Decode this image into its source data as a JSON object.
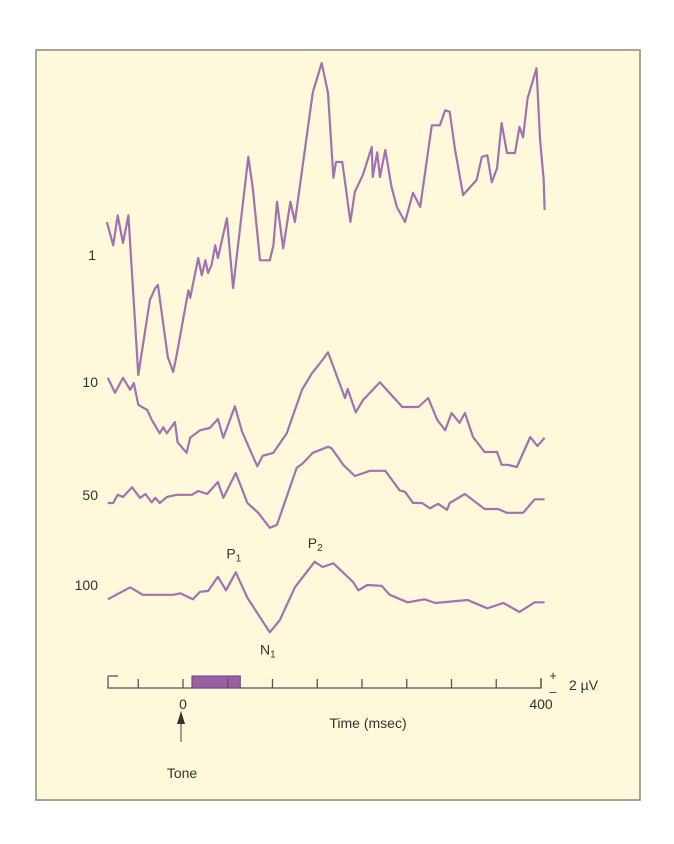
{
  "chart_data": {
    "type": "line",
    "title": "",
    "xlabel": "Time (msec)",
    "ylabel": "",
    "xlim": [
      -85,
      405
    ],
    "x_ticks": [
      -50,
      0,
      50,
      100,
      150,
      200,
      250,
      300,
      350,
      400
    ],
    "x_tick_labels": [
      {
        "t": 0,
        "label": "0"
      },
      {
        "t": 400,
        "label": "400"
      }
    ],
    "stimulus": {
      "label": "Tone",
      "onset_ms": 0,
      "bar_start_ms": 10,
      "bar_end_ms": 64,
      "color": "#9b5fa3"
    },
    "scale_bar": {
      "label": "2 µV",
      "plus": "+",
      "minus": "–",
      "value_uV": 2
    },
    "line_color": "#a272b0",
    "grid": false,
    "series": [
      {
        "name": "1",
        "t": [
          -85,
          -78,
          -73,
          -67,
          -61,
          -50,
          -37,
          -31,
          -28,
          -17,
          -11,
          -7,
          6,
          8,
          17,
          21,
          25,
          28,
          32,
          36,
          39,
          49,
          56,
          73,
          78,
          86,
          97,
          101,
          105,
          112,
          120,
          125,
          145,
          155,
          162,
          168,
          171,
          178,
          187,
          192,
          201,
          211,
          212,
          217,
          220,
          226,
          233,
          239,
          248,
          257,
          265,
          278,
          287,
          293,
          298,
          304,
          313,
          328,
          334,
          340,
          345,
          351,
          356,
          362,
          371,
          376,
          380,
          385,
          395,
          399,
          403,
          404
        ],
        "uV": [
          4.4,
          1.3,
          5.3,
          1.6,
          5.3,
          -16,
          -6,
          -4.4,
          -4,
          -13.6,
          -15.6,
          -13.3,
          -4.7,
          -5.7,
          -0.4,
          -2.7,
          -0.7,
          -2.4,
          -1.3,
          1.3,
          -0.4,
          4.9,
          -4.4,
          13.1,
          8.9,
          -0.7,
          -0.7,
          1.3,
          7.1,
          0.9,
          7.1,
          4.4,
          21.7,
          25.6,
          21.6,
          10.3,
          12.4,
          12.4,
          4.4,
          8.4,
          10.7,
          14.4,
          10.4,
          13.7,
          10.4,
          14,
          9.1,
          6.4,
          4.4,
          8.3,
          6.4,
          17.3,
          17.3,
          19.3,
          19.1,
          14,
          8,
          10,
          13.1,
          13.3,
          9.7,
          11.6,
          17.6,
          13.6,
          13.6,
          17.1,
          15.7,
          20.9,
          24.9,
          15.3,
          10,
          6
        ]
      },
      {
        "name": "10",
        "t": [
          -84,
          -76,
          -67,
          -59,
          -55,
          -50,
          -40,
          -35,
          -26,
          -22,
          -18,
          -9,
          -6,
          4,
          8,
          19,
          30,
          39,
          45,
          58,
          66,
          83,
          89,
          101,
          116,
          133,
          144,
          156,
          162,
          181,
          184,
          193,
          201,
          220,
          245,
          263,
          274,
          284,
          293,
          300,
          309,
          315,
          324,
          337,
          351,
          356,
          363,
          373,
          388,
          396,
          404
        ],
        "uV": [
          0.3,
          -1.7,
          0.3,
          -1.3,
          -0.4,
          -3.3,
          -4,
          -5.3,
          -7.1,
          -6.3,
          -7.1,
          -5.6,
          -8.3,
          -9.7,
          -7.7,
          -6.7,
          -6.4,
          -5.2,
          -7.7,
          -3.5,
          -6.9,
          -11.5,
          -10.1,
          -9.7,
          -7.1,
          -1.3,
          0.9,
          2.7,
          3.7,
          -2.4,
          -1.2,
          -4.3,
          -2.7,
          -0.3,
          -3.6,
          -3.6,
          -2.4,
          -5.3,
          -6.7,
          -4.4,
          -5.7,
          -4.4,
          -7.6,
          -9.6,
          -9.6,
          -11.3,
          -11.3,
          -11.6,
          -7.6,
          -8.8,
          -7.7
        ]
      },
      {
        "name": "50",
        "t": [
          -84,
          -78,
          -73,
          -67,
          -57,
          -48,
          -42,
          -35,
          -31,
          -26,
          -18,
          -7,
          10,
          17,
          27,
          39,
          45,
          59,
          72,
          84,
          97,
          105,
          127,
          134,
          145,
          162,
          166,
          179,
          192,
          209,
          226,
          242,
          248,
          257,
          267,
          276,
          285,
          295,
          298,
          315,
          337,
          352,
          362,
          380,
          393,
          404
        ],
        "uV": [
          -0.4,
          -0.4,
          0.7,
          0.4,
          1.7,
          0.3,
          0.8,
          -0.3,
          0.3,
          -0.4,
          0.4,
          0.7,
          0.7,
          1.2,
          0.8,
          2.4,
          0.3,
          3.6,
          -0.4,
          -1.7,
          -3.7,
          -3.3,
          4.3,
          4.9,
          6.3,
          7.1,
          6.9,
          4.7,
          3.2,
          3.9,
          3.9,
          1.3,
          1.1,
          -0.4,
          -0.4,
          -1.1,
          -0.5,
          -1.3,
          -0.4,
          0.8,
          -1.2,
          -1.2,
          -1.7,
          -1.7,
          0.1,
          0.1
        ]
      },
      {
        "name": "100",
        "t": [
          -84,
          -59,
          -45,
          -11,
          -3,
          11,
          19,
          28,
          39,
          48,
          59,
          72,
          97,
          108,
          125,
          147,
          156,
          168,
          190,
          196,
          206,
          222,
          231,
          251,
          270,
          282,
          318,
          340,
          358,
          376,
          393,
          404
        ],
        "uV": [
          0.1,
          1.7,
          0.7,
          0.7,
          0.9,
          0.1,
          1.1,
          1.2,
          3.1,
          1.3,
          3.7,
          0.3,
          -4.3,
          -2.7,
          1.7,
          5.1,
          4.4,
          4.9,
          2.4,
          1.3,
          2.0,
          1.9,
          0.7,
          -0.3,
          0.1,
          -0.4,
          0,
          -1.1,
          -0.4,
          -1.6,
          -0.3,
          -0.3
        ]
      }
    ],
    "annotations": [
      {
        "series": "100",
        "label": "P",
        "sub": "1",
        "t": 59
      },
      {
        "series": "100",
        "label": "P",
        "sub": "2",
        "t": 150
      },
      {
        "series": "100",
        "label": "N",
        "sub": "1",
        "t": 97
      }
    ]
  }
}
